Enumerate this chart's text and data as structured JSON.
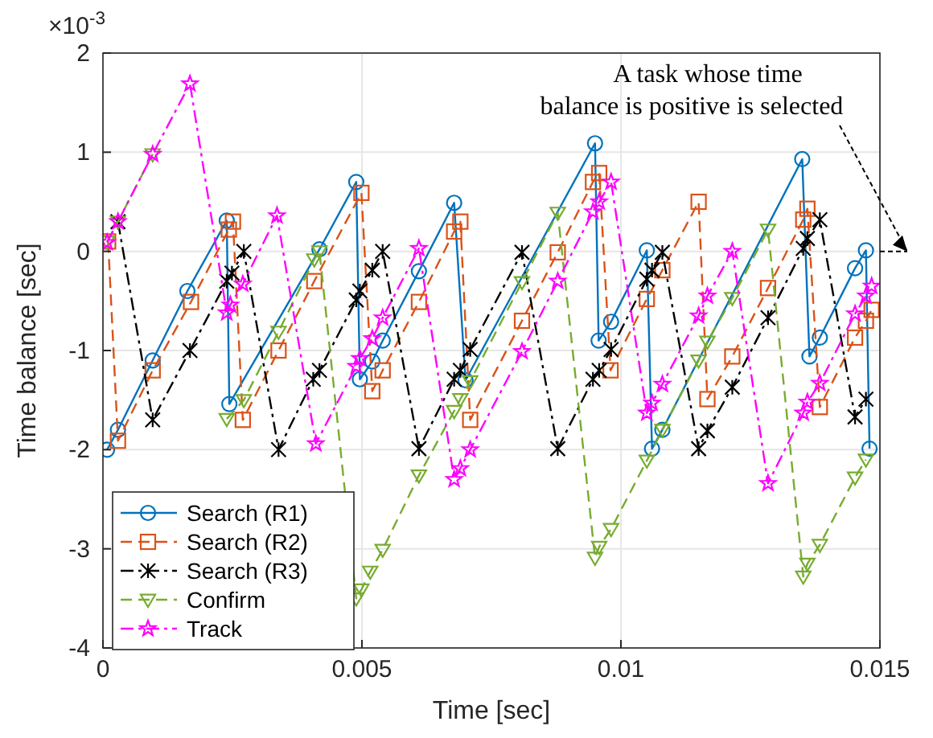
{
  "chart_data": {
    "type": "line",
    "xlabel": "Time [sec]",
    "ylabel": "Time balance [sec]",
    "xlim": [
      0,
      0.015
    ],
    "xticks": [
      0,
      0.005,
      0.01,
      0.015
    ],
    "ylim": [
      -4,
      2
    ],
    "yticks": [
      -4,
      -3,
      -2,
      -1,
      0,
      1,
      2
    ],
    "grid": true,
    "legend": "bottom left",
    "annotations": [
      "×10$^{-3}$",
      "A task whose time balance is positive is selected"
    ],
    "series": [
      {
        "name": "Search (R1)",
        "color": "#0072bd",
        "marker": "circle",
        "line_style": "solid",
        "x": [
          8e-05,
          0.00029,
          0.00096,
          0.00163,
          0.00239,
          0.00244,
          0.00418,
          0.00489,
          0.00496,
          0.0052,
          0.0054,
          0.0061,
          0.00678,
          0.007,
          0.0095,
          0.00957,
          0.00981,
          0.0105,
          0.0106,
          0.0108,
          0.0135,
          0.01364,
          0.01384,
          0.01452,
          0.01473,
          0.0148
        ],
        "values": [
          -2,
          -1.8,
          -1.1,
          -0.4,
          0.31,
          -1.54,
          0.02,
          0.7,
          -1.29,
          -1.11,
          -0.9,
          -0.2,
          0.49,
          -1.3,
          1.09,
          -0.9,
          -0.71,
          0.01,
          -1.99,
          -1.8,
          0.93,
          -1.06,
          -0.87,
          -0.17,
          0.01,
          -1.99
        ]
      },
      {
        "name": "Search (R2)",
        "color": "#d95319",
        "marker": "square",
        "line_style": "dashed",
        "x": [
          0.0001,
          0.00029,
          0.00096,
          0.0017,
          0.00243,
          0.00251,
          0.0027,
          0.00339,
          0.00408,
          0.00499,
          0.0052,
          0.0054,
          0.0061,
          0.00678,
          0.0069,
          0.00709,
          0.00809,
          0.00878,
          0.00946,
          0.00958,
          0.0098,
          0.0105,
          0.0108,
          0.0115,
          0.01167,
          0.01215,
          0.01284,
          0.01352,
          0.0136,
          0.01384,
          0.01452,
          0.01473,
          0.01484
        ],
        "values": [
          0.1,
          -1.91,
          -1.2,
          -0.51,
          0.22,
          0.3,
          -1.7,
          -1.0,
          -0.3,
          0.59,
          -1.41,
          -1.2,
          -0.51,
          0.2,
          0.3,
          -1.7,
          -0.7,
          -0.01,
          0.7,
          0.79,
          -1.2,
          -0.48,
          -0.19,
          0.5,
          -1.49,
          -1.06,
          -0.37,
          0.32,
          0.43,
          -1.57,
          -0.87,
          -0.7,
          -0.59
        ]
      },
      {
        "name": "Search (R3)",
        "color": "#000000",
        "marker": "cross",
        "line_style": "dotted",
        "x": [
          0.00029,
          0.00096,
          0.00168,
          0.00239,
          0.00249,
          0.00272,
          0.00339,
          0.00406,
          0.00418,
          0.00489,
          0.00496,
          0.0052,
          0.0054,
          0.0061,
          0.00678,
          0.0069,
          0.00709,
          0.00809,
          0.00878,
          0.00946,
          0.00958,
          0.00981,
          0.0105,
          0.0106,
          0.0108,
          0.0115,
          0.01167,
          0.01215,
          0.01284,
          0.01352,
          0.0136,
          0.01384,
          0.01452,
          0.01473
        ],
        "values": [
          0.3,
          -1.7,
          -1.0,
          -0.3,
          -0.22,
          0.0,
          -2.0,
          -1.29,
          -1.2,
          -0.49,
          -0.4,
          -0.19,
          0,
          -1.99,
          -1.29,
          -1.2,
          -0.99,
          -0.01,
          -1.99,
          -1.29,
          -1.2,
          -0.99,
          -0.28,
          -0.19,
          -0.01,
          -1.99,
          -1.81,
          -1.37,
          -0.67,
          0.03,
          0.13,
          0.32,
          -1.67,
          -1.49
        ]
      },
      {
        "name": "Confirm",
        "color": "#77ac30",
        "marker": "triangle",
        "line_style": "dashed",
        "x": [
          8e-05,
          0.00029,
          0.00096,
          0.0016,
          0.00239,
          0.00272,
          0.00339,
          0.00408,
          0.00418,
          0.00489,
          0.00499,
          0.00516,
          0.0054,
          0.0061,
          0.00678,
          0.0069,
          0.00709,
          0.00809,
          0.00878,
          0.0095,
          0.00958,
          0.00981,
          0.0105,
          0.0108,
          0.0115,
          0.01167,
          0.01215,
          0.01284,
          0.01352,
          0.0136,
          0.01384,
          0.01452,
          0.01473
        ],
        "values": [
          0.1,
          0.3,
          0.98,
          null,
          -1.69,
          -1.5,
          -0.81,
          -0.08,
          0.0,
          -3.5,
          -3.41,
          -3.23,
          -3.01,
          -2.26,
          -1.61,
          -1.49,
          -1.31,
          -0.31,
          0.39,
          -3.09,
          -2.98,
          -2.8,
          -2.11,
          -1.8,
          -1.1,
          -0.91,
          -0.47,
          0.22,
          -3.28,
          -3.15,
          -2.96,
          -2.28,
          -2.1
        ]
      },
      {
        "name": "Track",
        "color": "#ff00ff",
        "marker": "star",
        "line_style": "dotted",
        "x": [
          8e-05,
          0.00029,
          0.00096,
          0.00168,
          0.00239,
          0.00246,
          0.0027,
          0.00336,
          0.00411,
          0.00489,
          0.00496,
          0.0052,
          0.0054,
          0.0061,
          0.00678,
          0.0069,
          0.00709,
          0.00809,
          0.00878,
          0.00946,
          0.00958,
          0.00981,
          0.0105,
          0.0106,
          0.0108,
          0.0115,
          0.01167,
          0.01215,
          0.01284,
          0.01352,
          0.0136,
          0.01384,
          0.01452,
          0.01473,
          0.01484
        ],
        "values": [
          0.09,
          0.3,
          0.98,
          1.69,
          -0.62,
          -0.54,
          -0.33,
          0.36,
          -1.94,
          -1.16,
          -1.08,
          -0.88,
          -0.67,
          0.03,
          -2.3,
          -2.19,
          -2.0,
          -1.01,
          -0.3,
          0.4,
          0.5,
          0.7,
          -1.63,
          -1.53,
          -1.34,
          -0.65,
          -0.45,
          0.0,
          -2.34,
          -1.63,
          -1.52,
          -1.33,
          -0.63,
          -0.45,
          -0.35
        ]
      }
    ]
  }
}
